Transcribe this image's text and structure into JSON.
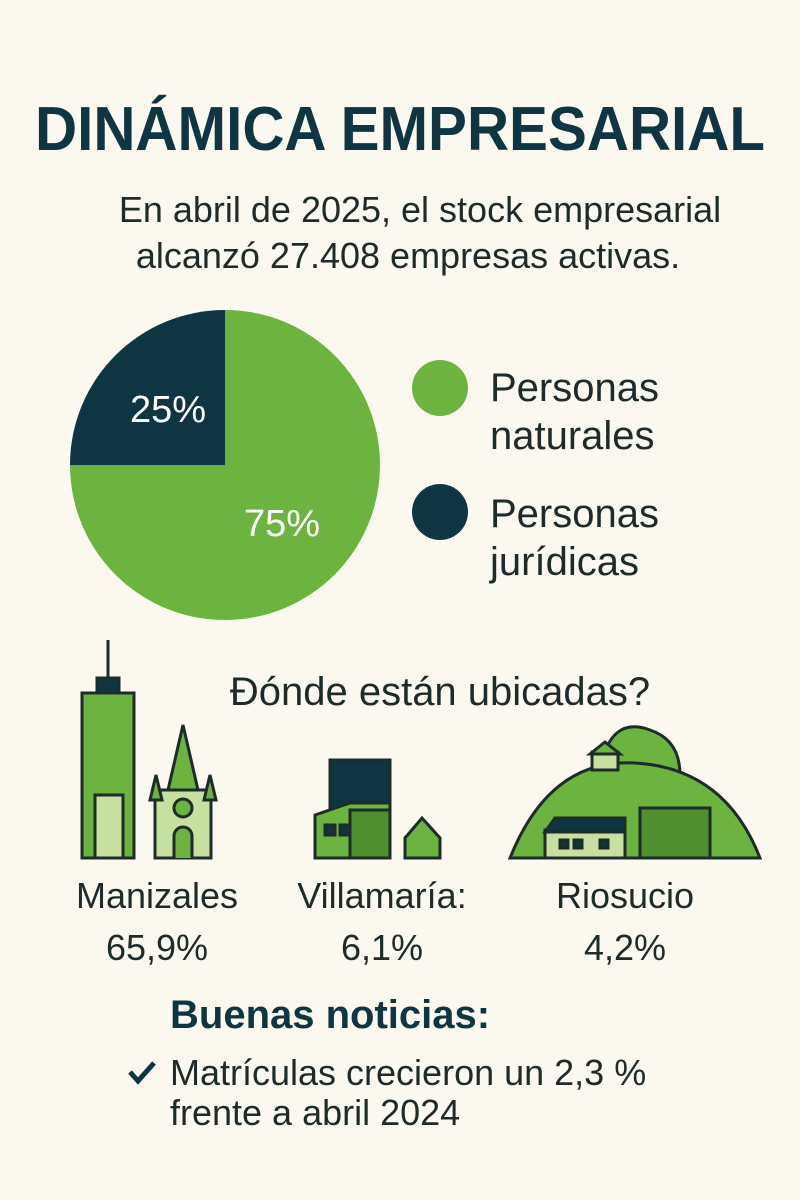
{
  "title": "DINÁMICA EMPRESARIAL",
  "subtitle": [
    "En abril de 2025, el stock empresarial",
    "alcanzó 27.408 empresas activas."
  ],
  "chart_data": {
    "type": "pie",
    "categories": [
      "Personas naturales",
      "Personas jurídicas"
    ],
    "values": [
      75,
      25
    ],
    "value_labels": [
      "75%",
      "25%"
    ],
    "colors": [
      "#6cb33f",
      "#0f3442"
    ]
  },
  "locations_heading": "Đónde están ubicadas?",
  "locations": [
    {
      "name": "Manizales",
      "share": "65,9%"
    },
    {
      "name": "Villamaría:",
      "share": "6,1%"
    },
    {
      "name": "Riosucio",
      "share": "4,2%"
    }
  ],
  "news": {
    "heading": "Buenas noticias:",
    "lines": [
      "Matrículas crecieron un 2,3 %",
      "frente a abril 2024"
    ]
  }
}
